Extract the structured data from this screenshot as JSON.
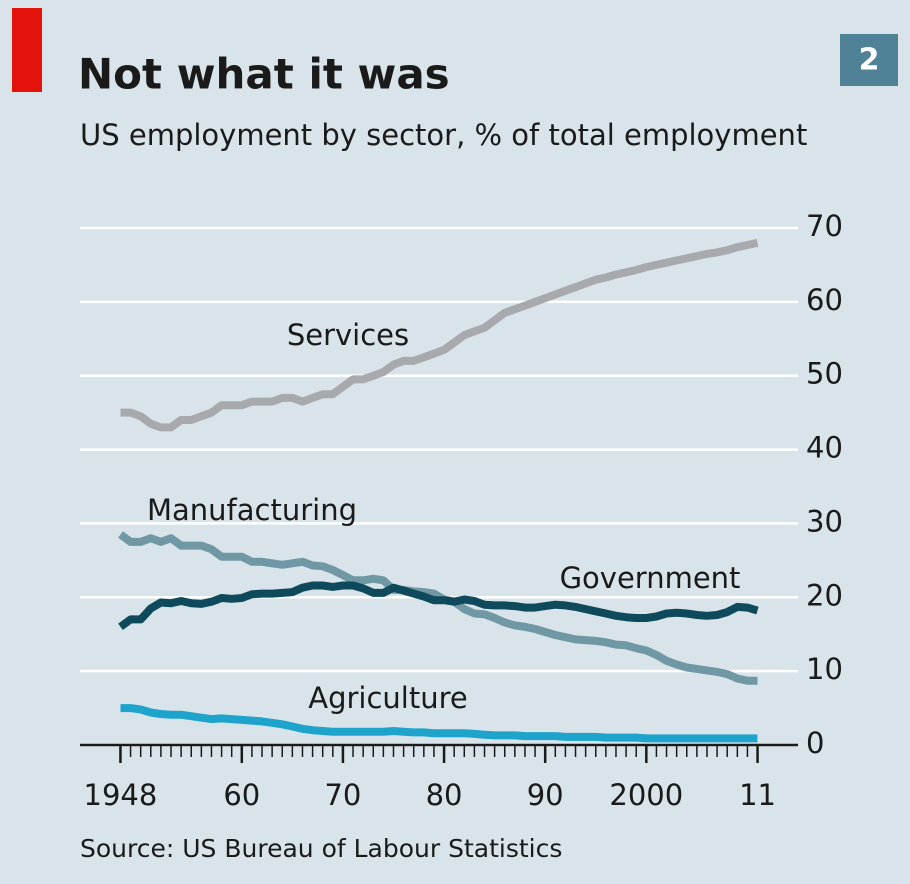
{
  "chart_data": {
    "type": "line",
    "title": "Not what it was",
    "subtitle": "US employment by sector, % of total employment",
    "chart_number": "2",
    "source": "Source: US Bureau of Labour Statistics",
    "x": [
      1948,
      1949,
      1950,
      1951,
      1952,
      1953,
      1954,
      1955,
      1956,
      1957,
      1958,
      1959,
      1960,
      1961,
      1962,
      1963,
      1964,
      1965,
      1966,
      1967,
      1968,
      1969,
      1970,
      1971,
      1972,
      1973,
      1974,
      1975,
      1976,
      1977,
      1978,
      1979,
      1980,
      1981,
      1982,
      1983,
      1984,
      1985,
      1986,
      1987,
      1988,
      1989,
      1990,
      1991,
      1992,
      1993,
      1994,
      1995,
      1996,
      1997,
      1998,
      1999,
      2000,
      2001,
      2002,
      2003,
      2004,
      2005,
      2006,
      2007,
      2008,
      2009,
      2010,
      2011
    ],
    "series": [
      {
        "name": "Services",
        "color": "#a7a9ac",
        "values": [
          45,
          45,
          44.5,
          43.5,
          43,
          43,
          44,
          44,
          44.5,
          45,
          46,
          46,
          46,
          46.5,
          46.5,
          46.5,
          47,
          47,
          46.5,
          47,
          47.5,
          47.5,
          48.5,
          49.5,
          49.5,
          50,
          50.5,
          51.5,
          52,
          52,
          52.5,
          53,
          53.5,
          54.5,
          55.5,
          56,
          56.5,
          57.5,
          58.5,
          59,
          59.5,
          60,
          60.5,
          61,
          61.5,
          62,
          62.5,
          63,
          63.3,
          63.7,
          64,
          64.3,
          64.7,
          65,
          65.3,
          65.6,
          65.9,
          66.2,
          66.5,
          66.7,
          67,
          67.4,
          67.7,
          68
        ]
      },
      {
        "name": "Manufacturing",
        "color": "#6f97a4",
        "values": [
          28.5,
          27.5,
          27.5,
          28,
          27.5,
          28,
          27,
          27,
          27,
          26.5,
          25.5,
          25.5,
          25.5,
          24.8,
          24.8,
          24.6,
          24.4,
          24.6,
          24.8,
          24.3,
          24.2,
          23.7,
          23,
          22.3,
          22.3,
          22.5,
          22.3,
          21,
          21,
          20.8,
          20.7,
          20.5,
          19.7,
          19.4,
          18.4,
          17.8,
          17.7,
          17.2,
          16.6,
          16.2,
          16,
          15.7,
          15.3,
          14.9,
          14.6,
          14.3,
          14.2,
          14.1,
          13.9,
          13.6,
          13.5,
          13.1,
          12.8,
          12.2,
          11.4,
          10.9,
          10.5,
          10.3,
          10.1,
          9.9,
          9.6,
          9,
          8.7,
          8.7
        ]
      },
      {
        "name": "Government",
        "color": "#0e4a5c",
        "values": [
          16,
          17,
          17,
          18.5,
          19.3,
          19.2,
          19.5,
          19.2,
          19.1,
          19.4,
          19.9,
          19.8,
          19.9,
          20.4,
          20.5,
          20.5,
          20.6,
          20.7,
          21.3,
          21.6,
          21.6,
          21.4,
          21.6,
          21.6,
          21.2,
          20.6,
          20.6,
          21.3,
          20.9,
          20.5,
          20.1,
          19.6,
          19.6,
          19.4,
          19.7,
          19.5,
          19,
          18.9,
          18.9,
          18.8,
          18.6,
          18.6,
          18.8,
          19,
          18.9,
          18.7,
          18.4,
          18.1,
          17.8,
          17.5,
          17.3,
          17.2,
          17.2,
          17.4,
          17.8,
          17.9,
          17.8,
          17.6,
          17.5,
          17.6,
          18,
          18.7,
          18.6,
          18.2
        ]
      },
      {
        "name": "Agriculture",
        "color": "#1ea3cc",
        "values": [
          5,
          5,
          4.8,
          4.4,
          4.2,
          4.1,
          4.1,
          3.9,
          3.7,
          3.5,
          3.6,
          3.5,
          3.4,
          3.3,
          3.2,
          3,
          2.8,
          2.5,
          2.2,
          2,
          1.9,
          1.8,
          1.8,
          1.8,
          1.8,
          1.8,
          1.8,
          1.9,
          1.8,
          1.7,
          1.7,
          1.6,
          1.6,
          1.6,
          1.6,
          1.5,
          1.4,
          1.3,
          1.3,
          1.3,
          1.2,
          1.2,
          1.2,
          1.2,
          1.1,
          1.1,
          1.1,
          1.1,
          1,
          1,
          1,
          1,
          0.9,
          0.9,
          0.9,
          0.9,
          0.9,
          0.9,
          0.9,
          0.9,
          0.9,
          0.9,
          0.9,
          0.9
        ]
      }
    ],
    "xlim": [
      1944,
      2015
    ],
    "xticks": [
      1948,
      {
        "value": 1960,
        "label": "60"
      },
      {
        "value": 1970,
        "label": "70"
      },
      {
        "value": 1980,
        "label": "80"
      },
      {
        "value": 1990,
        "label": "90"
      },
      2000,
      {
        "value": 2011,
        "label": "11"
      }
    ],
    "ylim": [
      0,
      70
    ],
    "yticks": [
      0,
      10,
      20,
      30,
      40,
      50,
      60,
      70
    ],
    "grid": true
  }
}
